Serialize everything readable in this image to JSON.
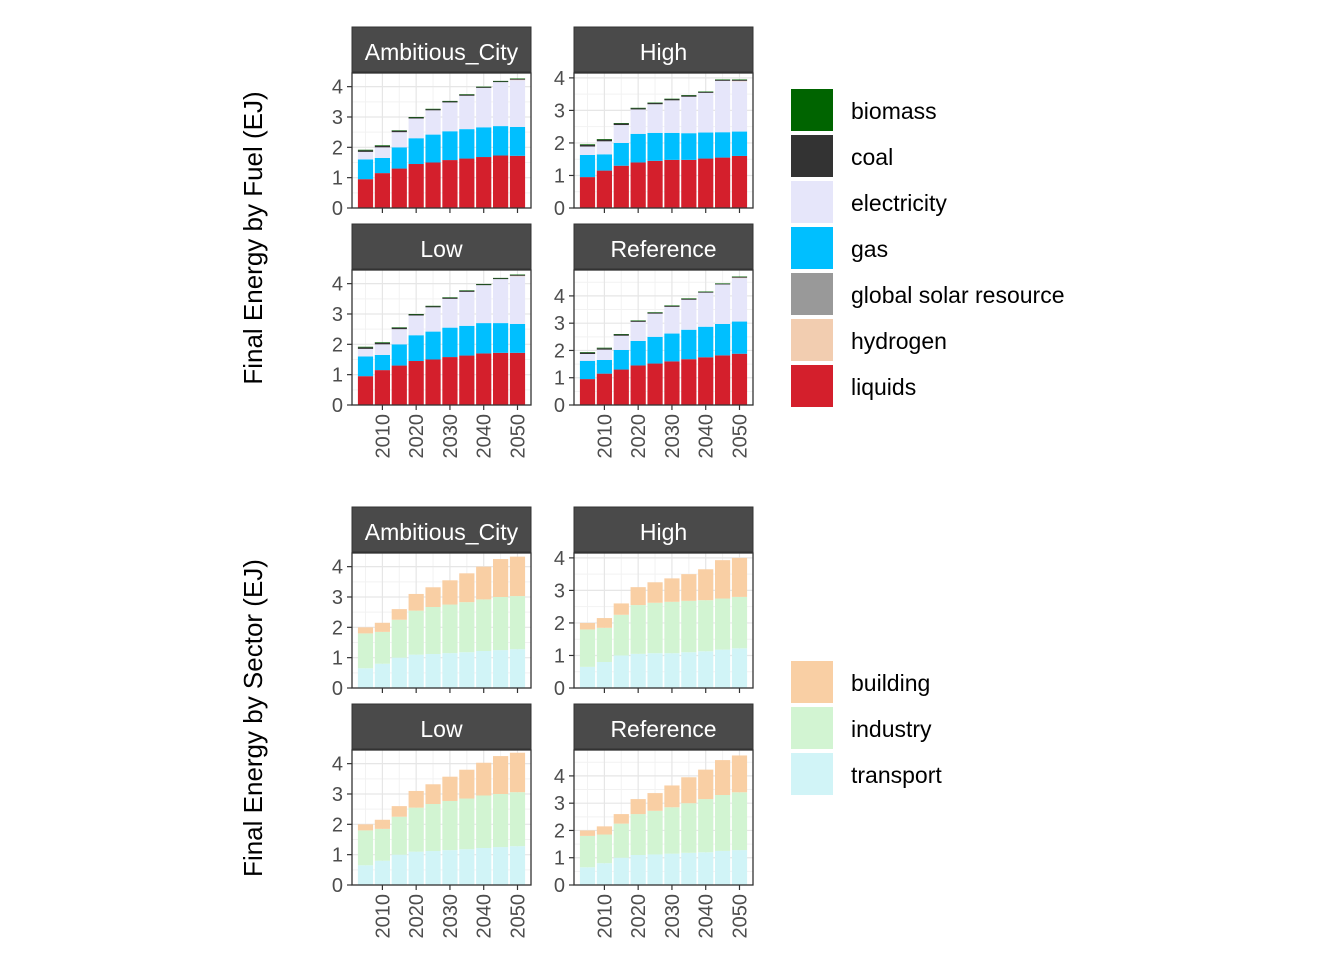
{
  "chart_data": [
    {
      "type": "bar",
      "stacked": true,
      "ylabel": "Final Energy by Fuel (EJ)",
      "x": [
        2005,
        2010,
        2015,
        2020,
        2025,
        2030,
        2035,
        2040,
        2045,
        2050
      ],
      "xticks": [
        "2010",
        "2020",
        "2030",
        "2040",
        "2050"
      ],
      "legend": {
        "keys": [
          "biomass",
          "coal",
          "electricity",
          "gas",
          "global solar resource",
          "hydrogen",
          "liquids"
        ],
        "colors": [
          "#006400",
          "#333333",
          "#E6E6FA",
          "#00BFFF",
          "#999999",
          "#F2CDB0",
          "#D41F2C"
        ]
      },
      "stack_order": [
        "liquids",
        "gas",
        "electricity",
        "hydrogen",
        "global solar resource",
        "coal",
        "biomass"
      ],
      "panels": [
        {
          "title": "Ambitious_City",
          "ylim": [
            0,
            4.45
          ],
          "yticks": [
            "0",
            "1",
            "2",
            "3",
            "4"
          ],
          "series": {
            "liquids": [
              0.95,
              1.15,
              1.3,
              1.45,
              1.5,
              1.58,
              1.63,
              1.68,
              1.73,
              1.72
            ],
            "gas": [
              0.65,
              0.5,
              0.7,
              0.85,
              0.92,
              0.95,
              0.97,
              0.98,
              0.97,
              0.95
            ],
            "electricity": [
              0.25,
              0.35,
              0.5,
              0.65,
              0.8,
              0.95,
              1.1,
              1.3,
              1.45,
              1.55
            ],
            "hydrogen": [
              0,
              0,
              0,
              0,
              0,
              0,
              0,
              0,
              0,
              0.01
            ],
            "global solar resource": [
              0,
              0,
              0,
              0,
              0,
              0,
              0,
              0,
              0,
              0
            ],
            "coal": [
              0.05,
              0.05,
              0.05,
              0.04,
              0.04,
              0.04,
              0.04,
              0.03,
              0.03,
              0.03
            ],
            "biomass": [
              0.02,
              0.02,
              0.01,
              0.01,
              0.01,
              0.01,
              0.01,
              0.01,
              0.01,
              0.01
            ]
          }
        },
        {
          "title": "High",
          "ylim": [
            0,
            4.15
          ],
          "yticks": [
            "0",
            "1",
            "2",
            "3",
            "4"
          ],
          "series": {
            "liquids": [
              0.95,
              1.15,
              1.3,
              1.4,
              1.45,
              1.48,
              1.48,
              1.52,
              1.55,
              1.6
            ],
            "gas": [
              0.68,
              0.5,
              0.7,
              0.88,
              0.86,
              0.83,
              0.82,
              0.8,
              0.78,
              0.75
            ],
            "electricity": [
              0.26,
              0.4,
              0.55,
              0.75,
              0.88,
              1.0,
              1.12,
              1.22,
              1.58,
              1.55
            ],
            "hydrogen": [
              0,
              0,
              0,
              0,
              0,
              0,
              0,
              0,
              0,
              0.01
            ],
            "global solar resource": [
              0,
              0,
              0,
              0,
              0,
              0,
              0,
              0,
              0,
              0
            ],
            "coal": [
              0.05,
              0.05,
              0.05,
              0.04,
              0.04,
              0.04,
              0.04,
              0.03,
              0.03,
              0.03
            ],
            "biomass": [
              0.02,
              0.02,
              0.01,
              0.01,
              0.01,
              0.01,
              0.01,
              0.01,
              0.01,
              0.01
            ]
          }
        },
        {
          "title": "Low",
          "ylim": [
            0,
            4.45
          ],
          "yticks": [
            "0",
            "1",
            "2",
            "3",
            "4"
          ],
          "series": {
            "liquids": [
              0.95,
              1.15,
              1.3,
              1.45,
              1.5,
              1.58,
              1.63,
              1.7,
              1.72,
              1.72
            ],
            "gas": [
              0.65,
              0.5,
              0.7,
              0.85,
              0.92,
              0.97,
              0.98,
              1.0,
              0.98,
              0.95
            ],
            "electricity": [
              0.25,
              0.35,
              0.5,
              0.65,
              0.8,
              0.95,
              1.12,
              1.25,
              1.45,
              1.58
            ],
            "hydrogen": [
              0,
              0,
              0,
              0,
              0,
              0,
              0,
              0,
              0,
              0.01
            ],
            "global solar resource": [
              0,
              0,
              0,
              0,
              0,
              0,
              0,
              0,
              0,
              0
            ],
            "coal": [
              0.05,
              0.05,
              0.05,
              0.04,
              0.04,
              0.04,
              0.04,
              0.03,
              0.03,
              0.03
            ],
            "biomass": [
              0.02,
              0.02,
              0.01,
              0.01,
              0.01,
              0.01,
              0.01,
              0.01,
              0.01,
              0.01
            ]
          }
        },
        {
          "title": "Reference",
          "ylim": [
            0,
            4.95
          ],
          "yticks": [
            "0",
            "1",
            "2",
            "3",
            "4"
          ],
          "series": {
            "liquids": [
              0.95,
              1.15,
              1.3,
              1.45,
              1.52,
              1.6,
              1.68,
              1.75,
              1.82,
              1.88
            ],
            "gas": [
              0.67,
              0.5,
              0.72,
              0.9,
              0.98,
              1.02,
              1.08,
              1.12,
              1.15,
              1.18
            ],
            "electricity": [
              0.25,
              0.38,
              0.52,
              0.7,
              0.85,
              0.98,
              1.1,
              1.25,
              1.45,
              1.6
            ],
            "hydrogen": [
              0,
              0,
              0,
              0,
              0,
              0,
              0,
              0,
              0,
              0.01
            ],
            "global solar resource": [
              0,
              0,
              0,
              0,
              0,
              0,
              0,
              0,
              0,
              0
            ],
            "coal": [
              0.05,
              0.05,
              0.05,
              0.04,
              0.04,
              0.04,
              0.04,
              0.03,
              0.03,
              0.03
            ],
            "biomass": [
              0.02,
              0.02,
              0.01,
              0.01,
              0.01,
              0.01,
              0.01,
              0.01,
              0.01,
              0.01
            ]
          }
        }
      ]
    },
    {
      "type": "bar",
      "stacked": true,
      "ylabel": "Final Energy by Sector (EJ)",
      "x": [
        2005,
        2010,
        2015,
        2020,
        2025,
        2030,
        2035,
        2040,
        2045,
        2050
      ],
      "xticks": [
        "2010",
        "2020",
        "2030",
        "2040",
        "2050"
      ],
      "legend": {
        "keys": [
          "building",
          "industry",
          "transport"
        ],
        "colors": [
          "#F9CFA4",
          "#D2F4D2",
          "#D1F4F7"
        ]
      },
      "stack_order": [
        "transport",
        "industry",
        "building"
      ],
      "panels": [
        {
          "title": "Ambitious_City",
          "ylim": [
            0,
            4.45
          ],
          "yticks": [
            "0",
            "1",
            "2",
            "3",
            "4"
          ],
          "series": {
            "transport": [
              0.65,
              0.8,
              1.0,
              1.1,
              1.12,
              1.15,
              1.18,
              1.22,
              1.25,
              1.28
            ],
            "industry": [
              1.15,
              1.05,
              1.25,
              1.45,
              1.55,
              1.6,
              1.65,
              1.7,
              1.75,
              1.75
            ],
            "building": [
              0.2,
              0.3,
              0.35,
              0.55,
              0.65,
              0.8,
              0.95,
              1.08,
              1.25,
              1.3
            ]
          }
        },
        {
          "title": "High",
          "ylim": [
            0,
            4.15
          ],
          "yticks": [
            "0",
            "1",
            "2",
            "3",
            "4"
          ],
          "series": {
            "transport": [
              0.65,
              0.8,
              1.0,
              1.05,
              1.07,
              1.07,
              1.1,
              1.13,
              1.18,
              1.22
            ],
            "industry": [
              1.15,
              1.05,
              1.25,
              1.5,
              1.55,
              1.58,
              1.58,
              1.57,
              1.57,
              1.58
            ],
            "building": [
              0.2,
              0.3,
              0.35,
              0.55,
              0.63,
              0.72,
              0.82,
              0.95,
              1.18,
              1.2
            ]
          }
        },
        {
          "title": "Low",
          "ylim": [
            0,
            4.45
          ],
          "yticks": [
            "0",
            "1",
            "2",
            "3",
            "4"
          ],
          "series": {
            "transport": [
              0.65,
              0.8,
              1.0,
              1.1,
              1.12,
              1.15,
              1.18,
              1.22,
              1.25,
              1.28
            ],
            "industry": [
              1.15,
              1.05,
              1.25,
              1.45,
              1.55,
              1.62,
              1.67,
              1.73,
              1.75,
              1.78
            ],
            "building": [
              0.2,
              0.3,
              0.35,
              0.55,
              0.65,
              0.8,
              0.95,
              1.08,
              1.25,
              1.3
            ]
          }
        },
        {
          "title": "Reference",
          "ylim": [
            0,
            4.95
          ],
          "yticks": [
            "0",
            "1",
            "2",
            "3",
            "4"
          ],
          "series": {
            "transport": [
              0.65,
              0.8,
              1.0,
              1.1,
              1.12,
              1.15,
              1.18,
              1.2,
              1.25,
              1.28
            ],
            "industry": [
              1.15,
              1.05,
              1.25,
              1.5,
              1.6,
              1.7,
              1.82,
              1.95,
              2.05,
              2.12
            ],
            "building": [
              0.2,
              0.3,
              0.35,
              0.55,
              0.65,
              0.8,
              0.95,
              1.08,
              1.28,
              1.35
            ]
          }
        }
      ]
    }
  ]
}
